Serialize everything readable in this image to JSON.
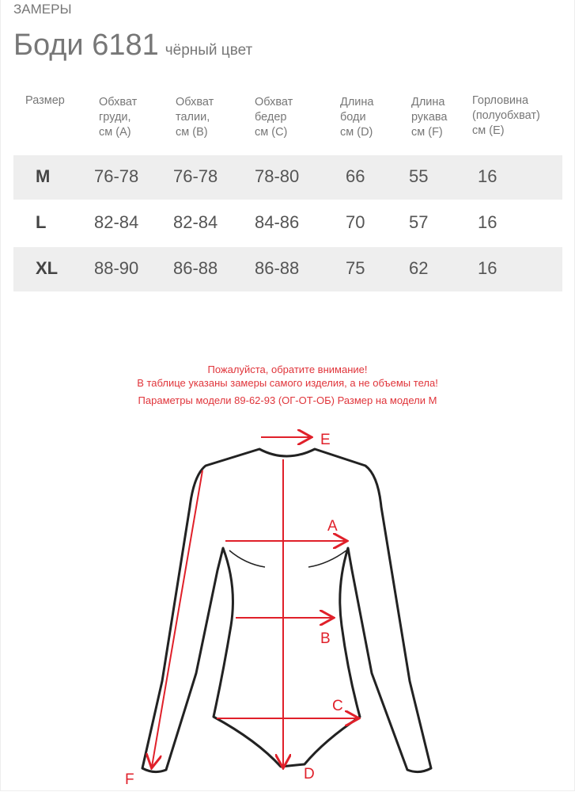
{
  "section_label": "ЗАМЕРЫ",
  "product": {
    "name": "Боди 6181",
    "color": "чёрный цвет"
  },
  "table": {
    "headers": [
      "Размер",
      "Обхват груди, см (А)",
      "Обхват талии, см (В)",
      "Обхват бедер см (С)",
      "Длина боди см (D)",
      "Длина рукава см (F)",
      "Горловина (полуобхват) см (Е)"
    ],
    "header_lines": [
      [
        "Размер"
      ],
      [
        "Обхват",
        "груди,",
        "см (А)"
      ],
      [
        "Обхват",
        "талии,",
        "см (В)"
      ],
      [
        "Обхват",
        "бедер",
        "см (С)"
      ],
      [
        "Длина",
        "боди",
        "см (D)"
      ],
      [
        "Длина",
        "рукава",
        "см (F)"
      ],
      [
        "Горловина",
        "(полуобхват)",
        "см (Е)"
      ]
    ],
    "rows": [
      [
        "M",
        "76-78",
        "76-78",
        "78-80",
        "66",
        "55",
        "16"
      ],
      [
        "L",
        "82-84",
        "82-84",
        "84-86",
        "70",
        "57",
        "16"
      ],
      [
        "XL",
        "88-90",
        "86-88",
        "86-88",
        "75",
        "62",
        "16"
      ]
    ]
  },
  "notes": [
    "Пожалуйста, обратите внимание!",
    "В таблице указаны замеры самого изделия, а не объемы тела!",
    "Параметры модели 89-62-93 (ОГ-ОТ-ОБ) Размер на модели М"
  ],
  "diagram": {
    "labels": {
      "A": "A",
      "B": "B",
      "C": "C",
      "D": "D",
      "E": "E",
      "F": "F"
    },
    "arrow_color": "#e0202a",
    "outline_color": "#222222"
  }
}
